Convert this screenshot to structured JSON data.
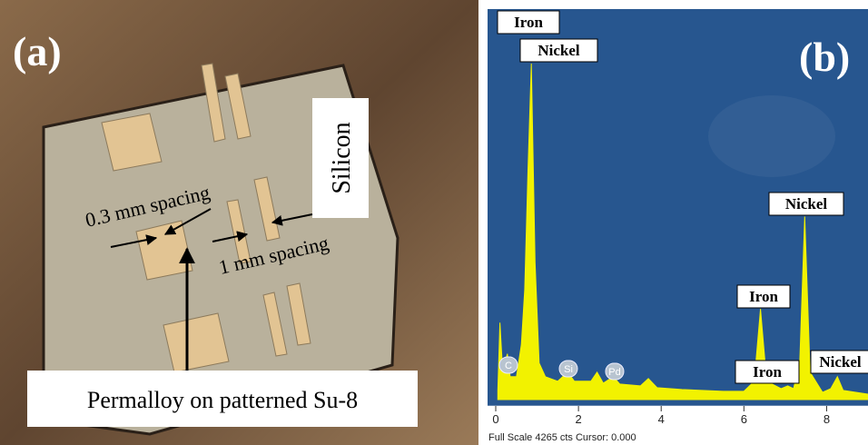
{
  "panel_a": {
    "label": "(a)",
    "material": "Silicon",
    "spacing_small": "0.3 mm spacing",
    "spacing_large": "1 mm spacing",
    "caption": "Permalloy on patterned Su-8"
  },
  "chart_data": {
    "type": "area",
    "label": "(b)",
    "footer": "Full Scale 4265 cts Cursor: 0.000",
    "color": "#f2f200",
    "background": "#27568f",
    "x": [
      0.05,
      0.1,
      0.17,
      0.28,
      0.35,
      0.5,
      0.62,
      0.7,
      0.78,
      0.86,
      0.95,
      1.05,
      1.2,
      1.5,
      1.74,
      1.9,
      2.3,
      2.45,
      2.6,
      2.84,
      3.0,
      3.5,
      3.69,
      3.9,
      4.5,
      5.5,
      6.0,
      6.25,
      6.4,
      6.55,
      6.9,
      7.06,
      7.2,
      7.35,
      7.47,
      7.6,
      7.9,
      8.1,
      8.26,
      8.4,
      9.0
    ],
    "values": [
      100,
      840,
      300,
      500,
      250,
      250,
      600,
      1200,
      2500,
      3670,
      1500,
      400,
      250,
      200,
      300,
      200,
      200,
      300,
      180,
      250,
      170,
      150,
      230,
      130,
      110,
      90,
      90,
      200,
      990,
      200,
      120,
      150,
      120,
      400,
      2000,
      300,
      80,
      120,
      250,
      100,
      60
    ],
    "xlim": [
      0,
      9
    ],
    "ylim": [
      0,
      4265
    ],
    "xticks": [
      0,
      2,
      4,
      6,
      8
    ],
    "peak_labels": [
      "Iron",
      "Nickel",
      "Nickel",
      "Iron",
      "Iron",
      "Nickel"
    ],
    "element_markers": [
      "C",
      "Si",
      "Pd"
    ]
  }
}
